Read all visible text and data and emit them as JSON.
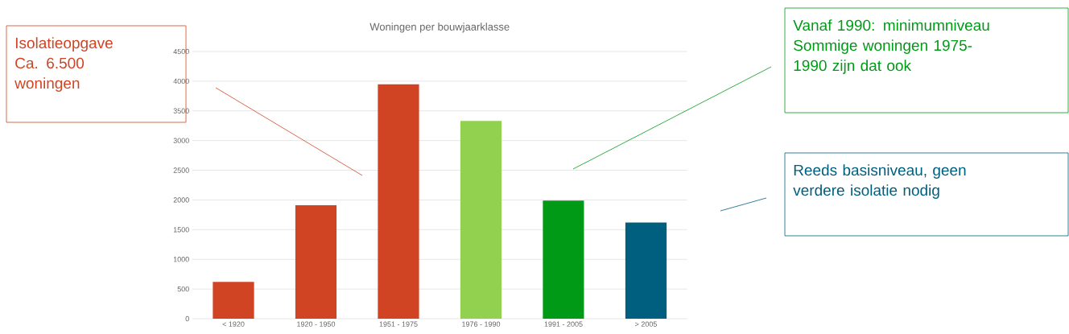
{
  "chart_data": {
    "type": "bar",
    "title": "Woningen per bouwjaarklasse",
    "categories": [
      "< 1920",
      "1920 - 1950",
      "1951 - 1975",
      "1976 - 1990",
      "1991 - 2005",
      "> 2005"
    ],
    "values": [
      620,
      1910,
      3950,
      3330,
      1990,
      1620
    ],
    "colors": [
      "#d04423",
      "#d04423",
      "#d04423",
      "#92d050",
      "#009a17",
      "#005f7f"
    ],
    "ylim": [
      0,
      4500
    ],
    "yticks": [
      0,
      500,
      1000,
      1500,
      2000,
      2500,
      3000,
      3500,
      4000,
      4500
    ],
    "grid": "y",
    "annotations": [
      "Isolatieopgave\nCa. 6.500\nwoningen",
      "Vanaf 1990: minimumniveau\nSommige woningen 1975-\n1990 zijn dat ook",
      "Reeds basisniveau, geen\nverdere isolatie nodig"
    ]
  }
}
